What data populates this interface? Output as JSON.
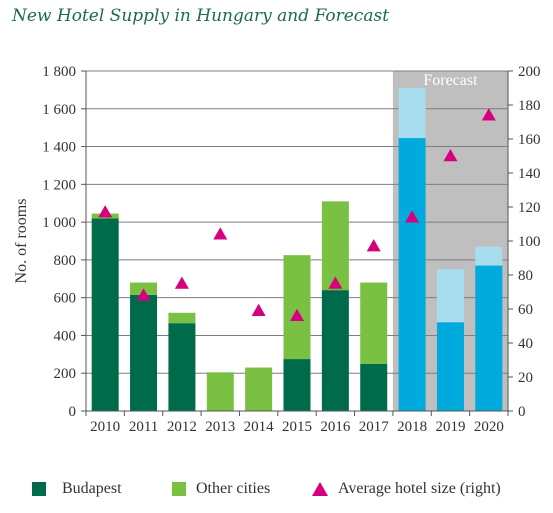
{
  "title": "New Hotel Supply in Hungary and Forecast",
  "colors": {
    "budapest": "#006b4a",
    "other": "#7ac143",
    "forecast_main": "#00aadd",
    "forecast_light": "#a8ddef",
    "forecast_bg": "#bfbfbf",
    "avg": "#d6007e",
    "title": "#1e6b4a"
  },
  "chart_data": {
    "type": "bar",
    "stacked": true,
    "categories": [
      "2010",
      "2011",
      "2012",
      "2013",
      "2014",
      "2015",
      "2016",
      "2017",
      "2018",
      "2019",
      "2020"
    ],
    "series": [
      {
        "name": "Budapest",
        "values": [
          1020,
          615,
          465,
          0,
          0,
          275,
          640,
          250,
          1445,
          470,
          770
        ]
      },
      {
        "name": "Other cities",
        "values": [
          25,
          65,
          55,
          205,
          230,
          550,
          470,
          430,
          265,
          280,
          100
        ]
      },
      {
        "name": "Average hotel size (right)",
        "axis": "right",
        "type": "scatter",
        "values": [
          117,
          68,
          75,
          104,
          59,
          56,
          75,
          97,
          114,
          150,
          174
        ]
      }
    ],
    "forecast_categories": [
      "2018",
      "2019",
      "2020"
    ],
    "forecast_label": "Forecast",
    "ylabel": "No. of rooms",
    "ylim": [
      0,
      1800
    ],
    "y_ticks": [
      "0",
      "200",
      "400",
      "600",
      "800",
      "1 000",
      "1 200",
      "1 400",
      "1 600",
      "1 800"
    ],
    "y2lim": [
      0,
      200
    ],
    "y2_ticks": [
      "0",
      "20",
      "40",
      "60",
      "80",
      "100",
      "120",
      "140",
      "160",
      "180",
      "200"
    ],
    "grid": true
  },
  "legend": [
    {
      "label": "Budapest"
    },
    {
      "label": "Other cities"
    },
    {
      "label": "Average hotel size (right)"
    }
  ]
}
